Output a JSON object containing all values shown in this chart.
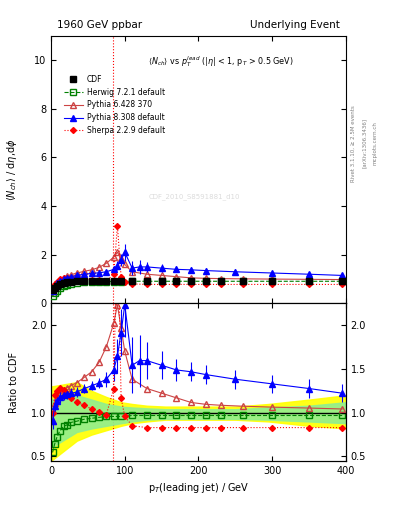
{
  "title_left": "1960 GeV ppbar",
  "title_right": "Underlying Event",
  "ylabel_main": "$\\langle N_{ch}\\rangle$ / d$\\eta$,d$\\phi$",
  "ylabel_ratio": "Ratio to CDF",
  "xlabel": "p$_T$(leading jet) / GeV",
  "annotation": "$\\langle N_{ch}\\rangle$ vs $p_T^{lead}$ (|$\\eta$| < 1, p$_T$ > 0.5 GeV)",
  "rivet_label": "Rivet 3.1.10, ≥ 2.5M events",
  "arxiv_label": "[arXiv:1306.3436]",
  "mcplots_label": "mcplots.cern.ch",
  "watermark": "CDF_2010_S8591881_d10",
  "ylim_main": [
    0.0,
    11.0
  ],
  "ylim_ratio": [
    0.45,
    2.25
  ],
  "xlim": [
    0,
    400
  ],
  "cdf_x": [
    2,
    5,
    8,
    12,
    17,
    22,
    27,
    35,
    45,
    55,
    65,
    75,
    85,
    95,
    110,
    130,
    150,
    170,
    190,
    210,
    230,
    260,
    300,
    350,
    395
  ],
  "cdf_y": [
    0.55,
    0.65,
    0.72,
    0.78,
    0.83,
    0.87,
    0.9,
    0.93,
    0.94,
    0.94,
    0.94,
    0.94,
    0.94,
    0.94,
    0.94,
    0.94,
    0.94,
    0.94,
    0.94,
    0.94,
    0.94,
    0.94,
    0.94,
    0.94,
    0.94
  ],
  "herwig_x": [
    2,
    5,
    8,
    12,
    17,
    22,
    27,
    35,
    45,
    55,
    65,
    75,
    85,
    95,
    110,
    130,
    150,
    170,
    190,
    210,
    230,
    260,
    300,
    350,
    395
  ],
  "herwig_y": [
    0.3,
    0.42,
    0.52,
    0.62,
    0.7,
    0.75,
    0.8,
    0.84,
    0.87,
    0.88,
    0.89,
    0.9,
    0.9,
    0.9,
    0.91,
    0.91,
    0.91,
    0.91,
    0.91,
    0.91,
    0.91,
    0.91,
    0.91,
    0.91,
    0.91
  ],
  "pythia6_x": [
    2,
    5,
    8,
    12,
    17,
    22,
    27,
    35,
    45,
    55,
    65,
    75,
    85,
    90,
    95,
    100,
    110,
    130,
    150,
    170,
    190,
    210,
    230,
    260,
    300,
    350,
    395
  ],
  "pythia6_y": [
    0.5,
    0.72,
    0.85,
    0.96,
    1.05,
    1.12,
    1.18,
    1.25,
    1.32,
    1.38,
    1.48,
    1.65,
    1.9,
    2.1,
    1.85,
    1.6,
    1.3,
    1.2,
    1.15,
    1.1,
    1.05,
    1.03,
    1.02,
    1.01,
    1.0,
    0.99,
    0.98
  ],
  "pythia8_x": [
    2,
    5,
    8,
    12,
    17,
    22,
    27,
    35,
    45,
    55,
    65,
    75,
    85,
    90,
    95,
    100,
    110,
    120,
    130,
    150,
    170,
    190,
    210,
    250,
    300,
    350,
    395
  ],
  "pythia8_y": [
    0.5,
    0.7,
    0.82,
    0.92,
    1.0,
    1.06,
    1.1,
    1.15,
    1.2,
    1.23,
    1.26,
    1.3,
    1.4,
    1.55,
    1.8,
    2.1,
    1.45,
    1.5,
    1.5,
    1.45,
    1.4,
    1.38,
    1.35,
    1.3,
    1.25,
    1.2,
    1.15
  ],
  "pythia8_yerr": [
    0.05,
    0.05,
    0.05,
    0.05,
    0.05,
    0.05,
    0.05,
    0.05,
    0.05,
    0.05,
    0.05,
    0.08,
    0.12,
    0.18,
    0.25,
    0.35,
    0.3,
    0.28,
    0.2,
    0.15,
    0.12,
    0.1,
    0.1,
    0.1,
    0.1,
    0.1,
    0.1
  ],
  "sherpa_x": [
    2,
    5,
    8,
    12,
    17,
    22,
    27,
    35,
    45,
    55,
    65,
    75,
    85,
    90,
    95,
    100,
    110,
    130,
    150,
    170,
    190,
    210,
    230,
    260,
    300,
    350,
    395
  ],
  "sherpa_y": [
    0.55,
    0.78,
    0.9,
    1.0,
    1.05,
    1.06,
    1.05,
    1.04,
    1.02,
    0.98,
    0.95,
    0.92,
    1.2,
    3.2,
    1.1,
    0.9,
    0.8,
    0.78,
    0.78,
    0.78,
    0.78,
    0.78,
    0.78,
    0.78,
    0.78,
    0.78,
    0.78
  ],
  "vline_x": 84.0,
  "band_yellow_x": [
    0,
    35,
    55,
    75,
    95,
    110,
    130,
    155,
    185,
    215,
    250,
    295,
    350,
    400
  ],
  "band_yellow_lo": [
    0.45,
    0.68,
    0.75,
    0.8,
    0.85,
    0.88,
    0.9,
    0.92,
    0.92,
    0.92,
    0.92,
    0.9,
    0.85,
    0.82
  ],
  "band_yellow_hi": [
    1.3,
    1.35,
    1.25,
    1.18,
    1.12,
    1.1,
    1.08,
    1.07,
    1.07,
    1.07,
    1.07,
    1.1,
    1.15,
    1.2
  ],
  "band_green_x": [
    0,
    35,
    55,
    75,
    95,
    110,
    130,
    155,
    185,
    215,
    250,
    295,
    350,
    400
  ],
  "band_green_lo": [
    0.6,
    0.78,
    0.82,
    0.85,
    0.88,
    0.9,
    0.92,
    0.93,
    0.93,
    0.93,
    0.93,
    0.92,
    0.9,
    0.88
  ],
  "band_green_hi": [
    1.15,
    1.2,
    1.15,
    1.1,
    1.07,
    1.06,
    1.05,
    1.04,
    1.04,
    1.04,
    1.04,
    1.06,
    1.08,
    1.12
  ]
}
